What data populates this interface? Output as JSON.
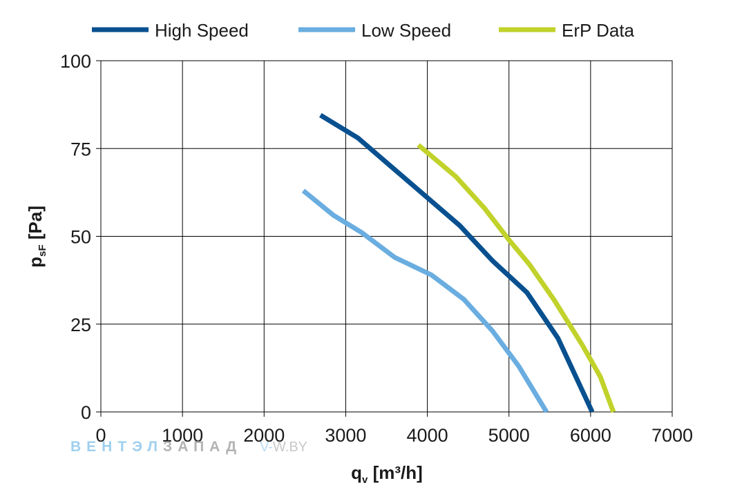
{
  "chart_data": {
    "type": "line",
    "xlabel": "q",
    "xlabel_sub": "v",
    "xlabel_unit": "[m³/h]",
    "ylabel": "p",
    "ylabel_sub": "sF",
    "ylabel_unit": "[Pa]",
    "xlim": [
      0,
      7000
    ],
    "ylim": [
      0,
      100
    ],
    "xticks": [
      0,
      1000,
      2000,
      3000,
      4000,
      5000,
      6000,
      7000
    ],
    "yticks": [
      0,
      25,
      50,
      75,
      100
    ],
    "grid": true,
    "legend_position": "top",
    "series": [
      {
        "name": "High Speed",
        "color": "#08508f",
        "x": [
          2690,
          3150,
          3600,
          4000,
          4400,
          4800,
          5220,
          5600,
          6020
        ],
        "y": [
          84.5,
          78,
          69,
          61,
          53,
          43,
          34,
          21,
          0
        ]
      },
      {
        "name": "Low Speed",
        "color": "#6aade0",
        "x": [
          2480,
          2850,
          3200,
          3600,
          4050,
          4450,
          4800,
          5120,
          5460
        ],
        "y": [
          63,
          56,
          51,
          44,
          39,
          32,
          23,
          13,
          0
        ]
      },
      {
        "name": "ErP Data",
        "color": "#c1d22a",
        "x": [
          3890,
          4350,
          4700,
          5000,
          5250,
          5550,
          5900,
          6120,
          6280
        ],
        "y": [
          76,
          67,
          58,
          49,
          42,
          32,
          19,
          10,
          0
        ]
      }
    ]
  },
  "watermark": {
    "part1": "ВЕНТЭЛ",
    "part2": "ЗАПАД",
    "part3": "V-",
    "part4": "W.BY"
  }
}
